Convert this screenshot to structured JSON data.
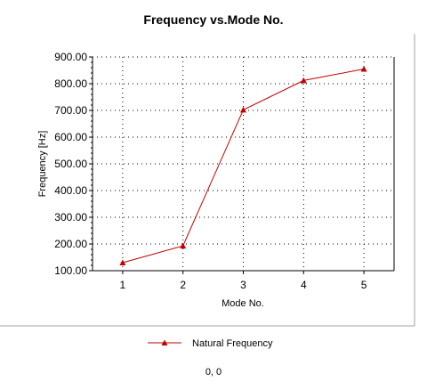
{
  "status_readout": "0, 0",
  "chart_data": {
    "type": "line",
    "title": "Frequency vs.Mode No.",
    "xlabel": "Mode No.",
    "ylabel": "Frequency [Hz]",
    "x": [
      1,
      2,
      3,
      4,
      5
    ],
    "x_ticks": [
      "1",
      "2",
      "3",
      "4",
      "5"
    ],
    "xlim": [
      0.5,
      5.5
    ],
    "ylim": [
      100,
      900
    ],
    "y_ticks": [
      "100.00",
      "200.00",
      "300.00",
      "400.00",
      "500.00",
      "600.00",
      "700.00",
      "800.00",
      "900.00"
    ],
    "grid": true,
    "legend_position": "bottom-center",
    "series": [
      {
        "name": "Natural Frequency",
        "values": [
          130,
          193,
          702,
          812,
          855
        ],
        "color": "#c00000",
        "marker": "triangle"
      }
    ]
  }
}
